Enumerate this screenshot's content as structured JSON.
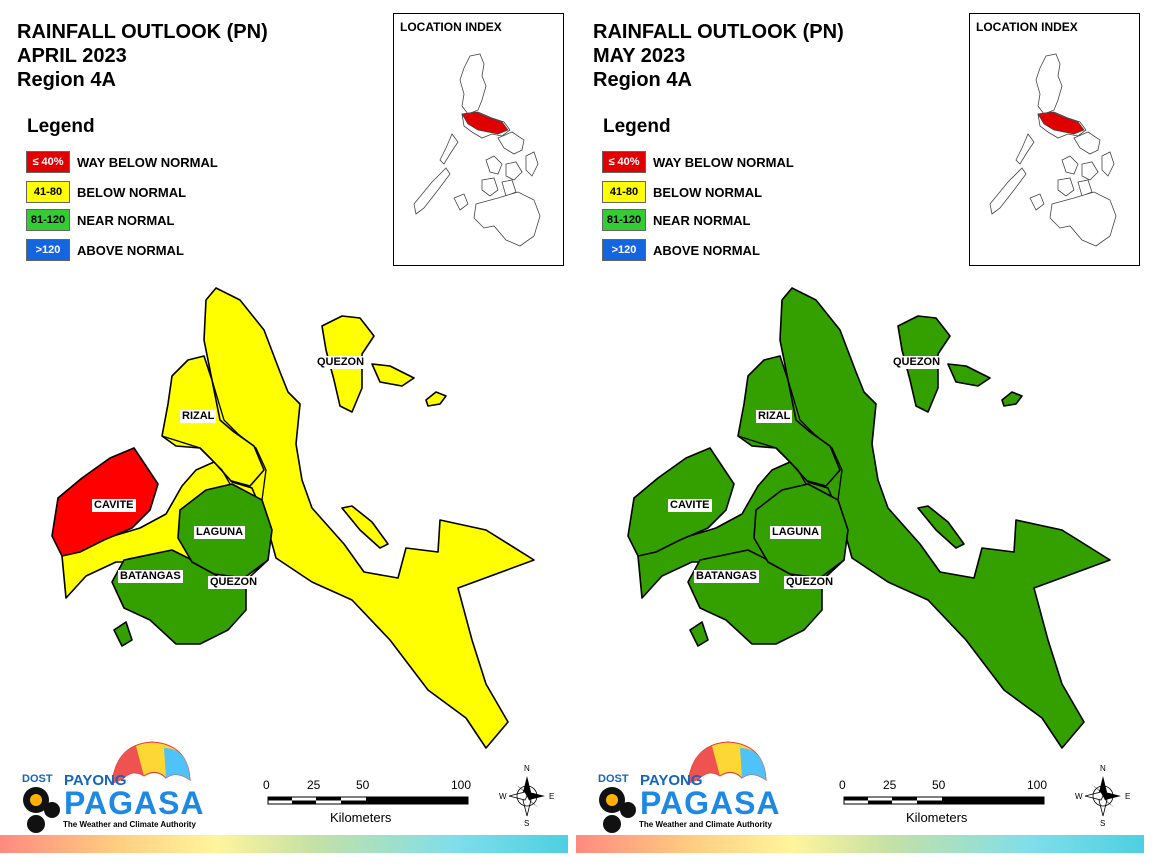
{
  "panels": [
    {
      "title_line1": "RAINFALL OUTLOOK (PN)",
      "title_line2": "APRIL 2023",
      "title_line3": "Region 4A",
      "fills": {
        "quezon": "#ffff00",
        "rizal": "#ffff00",
        "cavite": "#ff0000",
        "batangas": "#33a000",
        "laguna": "#33a000",
        "batangas_north": "#ffff00"
      }
    },
    {
      "title_line1": "RAINFALL OUTLOOK (PN)",
      "title_line2": "MAY 2023",
      "title_line3": "Region 4A",
      "fills": {
        "quezon": "#33a000",
        "rizal": "#33a000",
        "cavite": "#33a000",
        "batangas": "#33a000",
        "laguna": "#33a000",
        "batangas_north": "#33a000"
      }
    }
  ],
  "legend": {
    "title": "Legend",
    "items": [
      {
        "range": "≤ 40%",
        "label": "WAY BELOW NORMAL",
        "color": "#e00000",
        "text_color": "#ffffff"
      },
      {
        "range": "41-80",
        "label": "BELOW NORMAL",
        "color": "#ffff00",
        "text_color": "#000000"
      },
      {
        "range": "81-120",
        "label": "NEAR NORMAL",
        "color": "#33cc33",
        "text_color": "#000000"
      },
      {
        "range": ">120",
        "label": "ABOVE NORMAL",
        "color": "#1565e0",
        "text_color": "#ffffff"
      }
    ]
  },
  "location_index": {
    "title": "LOCATION INDEX",
    "highlight_color": "#e00000"
  },
  "province_labels": {
    "quezon": "QUEZON",
    "rizal": "RIZAL",
    "cavite": "CAVITE",
    "laguna": "LAGUNA",
    "batangas": "BATANGAS",
    "quezon_south": "QUEZON"
  },
  "scale": {
    "ticks": [
      "0",
      "25",
      "50",
      "100"
    ],
    "unit": "Kilometers"
  },
  "compass": {
    "n": "N",
    "s": "S",
    "e": "E",
    "w": "W"
  },
  "logo": {
    "dost": "DOST",
    "payong": "PAYONG",
    "pagasa": "PAGASA",
    "tagline": "The Weather and Climate Authority"
  }
}
